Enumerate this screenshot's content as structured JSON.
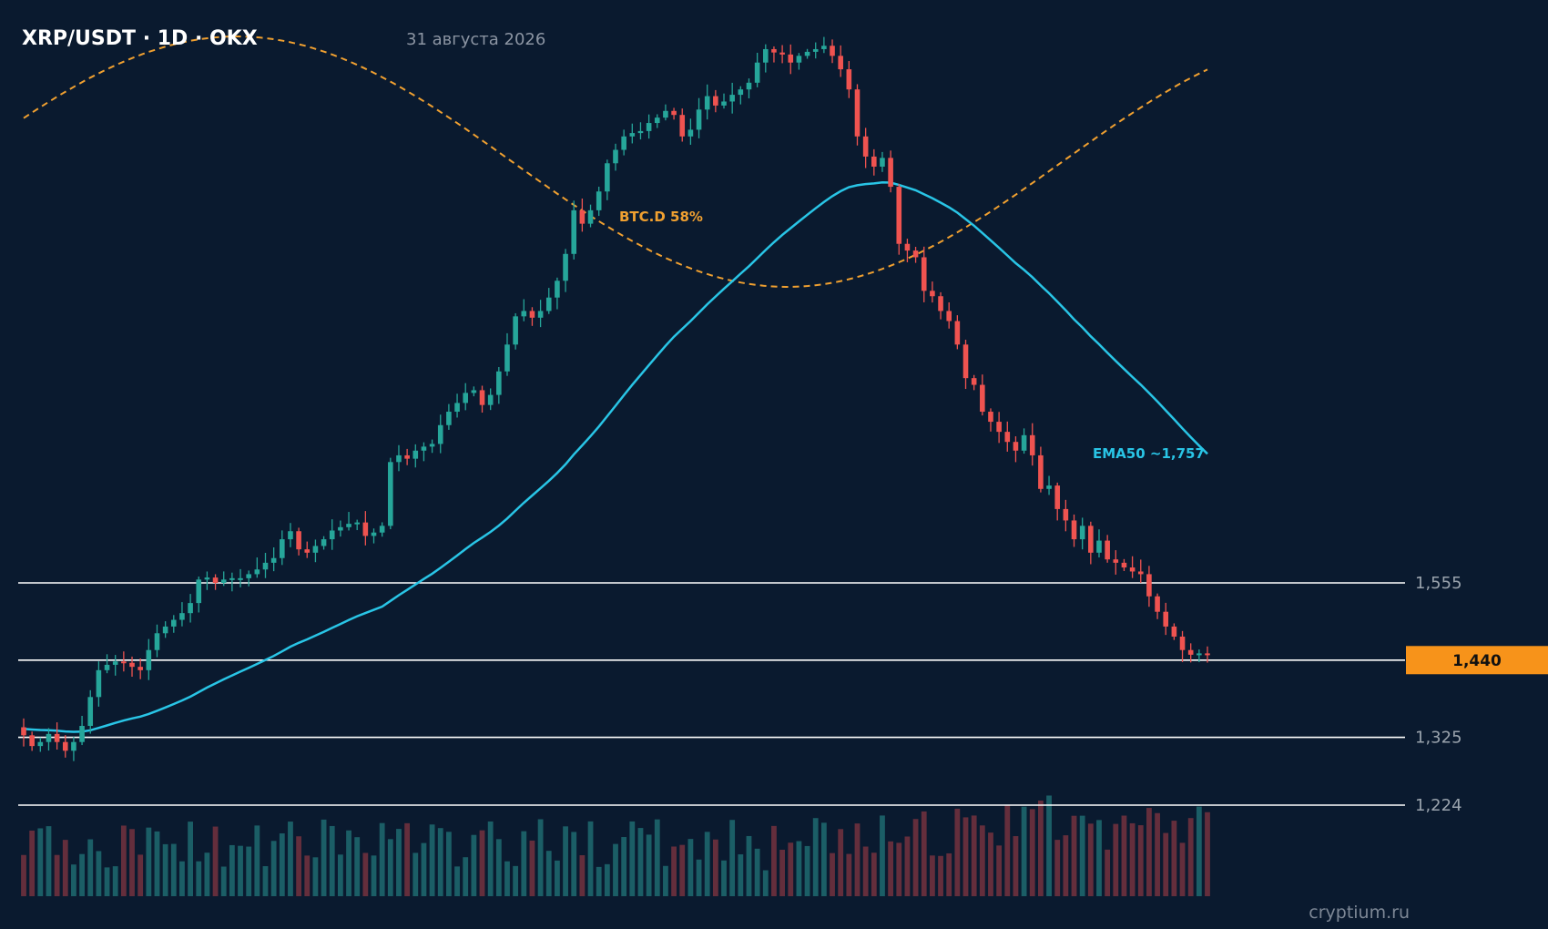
{
  "header": {
    "title": "XRP/USDT · 1D · OKX",
    "date": "31 августа 2026"
  },
  "watermark": "cryptium.ru",
  "colors": {
    "background": "#0a1a2f",
    "bull": "#26a69a",
    "bear": "#ef5350",
    "ema": "#29c5e6",
    "btcd": "#f0a030",
    "level": "#ffffff",
    "price_tag": "#f7931a"
  },
  "chart_data": {
    "type": "candlestick",
    "title": "XRP/USDT · 1D · OKX",
    "y_range": [
      1.18,
      2.78
    ],
    "horizontal_levels": [
      {
        "value": 1.555,
        "label": "1,555"
      },
      {
        "value": 1.44,
        "label": "1,440",
        "style": "current-price-tag"
      },
      {
        "value": 1.325,
        "label": "1,325"
      },
      {
        "value": 1.224,
        "label": "1,224"
      }
    ],
    "annotations": {
      "ema_label": "EMA50 ~1,757",
      "btcd_label": "BTC.D 58%"
    },
    "close_approx": [
      1.328,
      1.312,
      1.318,
      1.33,
      1.318,
      1.305,
      1.318,
      1.342,
      1.385,
      1.425,
      1.433,
      1.438,
      1.436,
      1.43,
      1.425,
      1.455,
      1.48,
      1.49,
      1.5,
      1.51,
      1.525,
      1.56,
      1.563,
      1.555,
      1.56,
      1.562,
      1.562,
      1.568,
      1.575,
      1.585,
      1.592,
      1.62,
      1.632,
      1.605,
      1.6,
      1.61,
      1.62,
      1.633,
      1.638,
      1.643,
      1.645,
      1.625,
      1.63,
      1.64,
      1.735,
      1.745,
      1.74,
      1.752,
      1.758,
      1.762,
      1.79,
      1.81,
      1.823,
      1.838,
      1.842,
      1.82,
      1.835,
      1.87,
      1.91,
      1.952,
      1.96,
      1.95,
      1.96,
      1.98,
      2.005,
      2.045,
      2.11,
      2.09,
      2.11,
      2.138,
      2.18,
      2.2,
      2.22,
      2.225,
      2.228,
      2.24,
      2.248,
      2.258,
      2.252,
      2.22,
      2.23,
      2.26,
      2.28,
      2.266,
      2.272,
      2.282,
      2.29,
      2.3,
      2.33,
      2.35,
      2.345,
      2.342,
      2.33,
      2.34,
      2.346,
      2.35,
      2.355,
      2.34,
      2.32,
      2.29,
      2.22,
      2.19,
      2.175,
      2.188,
      2.145,
      2.06,
      2.05,
      2.04,
      1.99,
      1.982,
      1.96,
      1.945,
      1.91,
      1.86,
      1.85,
      1.81,
      1.795,
      1.78,
      1.765,
      1.752,
      1.775,
      1.745,
      1.695,
      1.7,
      1.665,
      1.648,
      1.62,
      1.64,
      1.6,
      1.618,
      1.59,
      1.585,
      1.578,
      1.572,
      1.568,
      1.535,
      1.512,
      1.49,
      1.475,
      1.455,
      1.448,
      1.45,
      1.448
    ]
  }
}
